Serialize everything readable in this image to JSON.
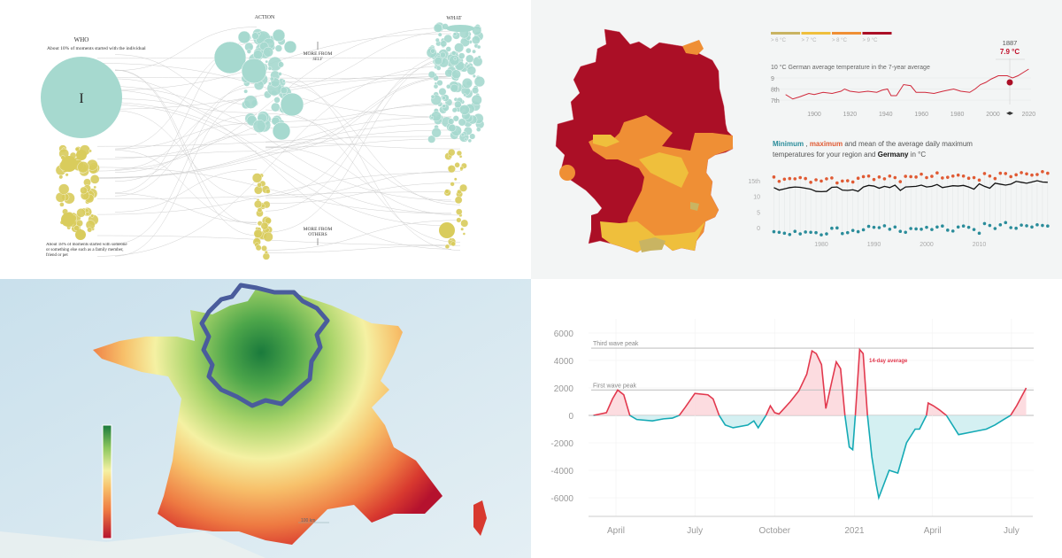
{
  "panels": {
    "bubble_flow": {
      "who_label": "WHO",
      "who_note": "About 10% of moments started with the individual",
      "who_big_node": "I",
      "action_label": "ACTION",
      "what_label": "WHAT",
      "more_from_self": "MORE FROM",
      "more_from_self_sub": "SELF",
      "more_from_others": "MORE FROM",
      "more_from_others_sub": "OTHERS",
      "others_note": "About 18% of moments started with someone or something else such as a family member, friend or pet",
      "colors": {
        "self": "#a6d9cf",
        "others": "#d9cc5c",
        "links": "#d0d0d0"
      }
    },
    "germany_map": {
      "legend": [
        {
          "label": "> 6 °C",
          "color": "#c9b462"
        },
        {
          "label": "> 7 °C",
          "color": "#efbf3c"
        },
        {
          "label": "> 8 °C",
          "color": "#ef8f35"
        },
        {
          "label": "> 9 °C",
          "color": "#ab0f26"
        }
      ]
    },
    "france_map": {
      "scale_label": "100 km",
      "colors": {
        "high": "#1a7a3c",
        "mid": "#f7f0a0",
        "low": "#b5122e",
        "boundary": "#4a5c9c"
      }
    }
  },
  "chart_data": [
    {
      "type": "line",
      "title": "10 °C German average temperature in the 7-year average",
      "hover": {
        "year": "1887",
        "value": "7.9 °C"
      },
      "x_ticks": [
        "1900",
        "1920",
        "1940",
        "1960",
        "1980",
        "2000",
        "2020"
      ],
      "y_ticks": [
        "9",
        "8th",
        "7th"
      ],
      "ylim": [
        7,
        10
      ],
      "color": "#d0283a",
      "points": [
        [
          1884,
          7.5
        ],
        [
          1888,
          7.1
        ],
        [
          1892,
          7.3
        ],
        [
          1897,
          7.6
        ],
        [
          1900,
          7.5
        ],
        [
          1905,
          7.7
        ],
        [
          1910,
          7.6
        ],
        [
          1915,
          7.8
        ],
        [
          1917,
          8.0
        ],
        [
          1920,
          7.8
        ],
        [
          1925,
          7.7
        ],
        [
          1930,
          7.8
        ],
        [
          1935,
          7.7
        ],
        [
          1938,
          7.9
        ],
        [
          1941,
          8.0
        ],
        [
          1943,
          7.4
        ],
        [
          1946,
          7.4
        ],
        [
          1950,
          8.4
        ],
        [
          1954,
          8.3
        ],
        [
          1957,
          7.7
        ],
        [
          1962,
          7.7
        ],
        [
          1967,
          7.6
        ],
        [
          1972,
          7.8
        ],
        [
          1978,
          8.0
        ],
        [
          1982,
          7.8
        ],
        [
          1987,
          7.7
        ],
        [
          1990,
          8.0
        ],
        [
          1993,
          8.4
        ],
        [
          1996,
          8.6
        ],
        [
          1999,
          8.9
        ],
        [
          2003,
          9.2
        ],
        [
          2008,
          9.2
        ],
        [
          2011,
          9.0
        ],
        [
          2014,
          9.2
        ],
        [
          2017,
          9.5
        ],
        [
          2020,
          9.8
        ]
      ]
    },
    {
      "type": "scatter",
      "title_parts": {
        "min": "Minimum",
        "comma": ",",
        "max": "maximum",
        "rest1": "and mean of the average daily maximum",
        "rest2": "temperatures for your region and",
        "germany": "Germany",
        "unit": "in °C"
      },
      "x_ticks": [
        "1980",
        "1990",
        "2000",
        "2010"
      ],
      "y_ticks": [
        "15th",
        "10",
        "5",
        "0"
      ],
      "ylim": [
        -3,
        19
      ],
      "start_year": 1971,
      "series": [
        {
          "key": "max",
          "color": "#e05a33",
          "values": [
            16.2,
            14.8,
            15.5,
            15.7,
            15.6,
            16.0,
            15.7,
            14.5,
            15.3,
            14.9,
            15.6,
            15.9,
            14.3,
            14.9,
            15.0,
            14.6,
            15.8,
            16.3,
            16.5,
            15.4,
            16.2,
            15.6,
            16.5,
            16.0,
            14.7,
            16.4,
            16.3,
            16.2,
            17.1,
            16.0,
            16.4,
            17.5,
            15.9,
            16.1,
            16.5,
            16.8,
            16.5,
            15.8,
            16.0,
            15.2,
            17.3,
            16.5,
            15.7,
            17.4,
            17.3,
            16.3,
            16.9,
            17.6,
            17.2,
            16.8,
            17.0,
            17.9,
            17.4
          ]
        },
        {
          "key": "mean",
          "color": "#111111",
          "values": [
            12.8,
            12.0,
            12.4,
            12.8,
            13.0,
            12.9,
            12.6,
            12.3,
            11.6,
            11.5,
            11.6,
            12.9,
            13.0,
            12.0,
            11.9,
            12.1,
            11.6,
            13.0,
            13.5,
            13.3,
            12.6,
            13.2,
            12.8,
            13.6,
            11.9,
            13.0,
            13.1,
            13.2,
            13.6,
            13.0,
            13.2,
            13.8,
            12.8,
            13.1,
            13.4,
            13.3,
            13.5,
            13.0,
            12.3,
            14.0,
            13.2,
            12.6,
            14.2,
            13.9,
            13.6,
            13.9,
            14.8,
            14.5,
            14.2,
            14.6,
            15.0,
            14.6,
            14.5
          ]
        },
        {
          "key": "min",
          "color": "#2a8c9a",
          "values": [
            -1.3,
            -1.5,
            -1.8,
            -2.2,
            -1.2,
            -2.0,
            -1.4,
            -1.5,
            -1.6,
            -2.3,
            -2.0,
            -0.2,
            -0.1,
            -1.9,
            -1.6,
            -0.9,
            -1.3,
            -0.7,
            0.4,
            0.1,
            0.0,
            0.6,
            -0.5,
            0.2,
            -1.2,
            -1.5,
            -0.3,
            -0.4,
            -0.5,
            0.1,
            -0.6,
            0.2,
            0.5,
            -0.8,
            -1.1,
            0.2,
            0.5,
            0.1,
            -0.6,
            -1.8,
            1.3,
            0.7,
            -0.3,
            0.9,
            1.6,
            0.0,
            -0.2,
            0.8,
            0.6,
            0.2,
            0.9,
            0.7,
            0.5
          ]
        }
      ]
    },
    {
      "type": "area",
      "series_label": "14-day average",
      "annotations": [
        {
          "label": "Third wave peak",
          "value": 4900
        },
        {
          "label": "First wave peak",
          "value": 1850
        }
      ],
      "y_ticks": [
        6000,
        4000,
        2000,
        0,
        -2000,
        -4000,
        -6000
      ],
      "x_ticks": [
        {
          "label": "April",
          "date": "2020-04-01"
        },
        {
          "label": "July",
          "date": "2020-07-01"
        },
        {
          "label": "October",
          "date": "2020-10-01"
        },
        {
          "label": "2021",
          "date": "2021-01-01"
        },
        {
          "label": "April",
          "date": "2021-04-01"
        },
        {
          "label": "July",
          "date": "2021-07-01"
        }
      ],
      "ylim": [
        -7000,
        7000
      ],
      "colors": {
        "positive": "#e2394e",
        "negative": "#15aab5",
        "positive_fill": "#fbd3d8",
        "negative_fill": "#c9ecef"
      },
      "points": [
        [
          "2020-03-06",
          0
        ],
        [
          "2020-03-21",
          200
        ],
        [
          "2020-03-28",
          1200
        ],
        [
          "2020-04-03",
          1850
        ],
        [
          "2020-04-10",
          1500
        ],
        [
          "2020-04-17",
          0
        ],
        [
          "2020-04-25",
          -300
        ],
        [
          "2020-05-13",
          -400
        ],
        [
          "2020-05-26",
          -250
        ],
        [
          "2020-06-05",
          -200
        ],
        [
          "2020-06-13",
          0
        ],
        [
          "2020-06-20",
          600
        ],
        [
          "2020-07-01",
          1600
        ],
        [
          "2020-07-16",
          1500
        ],
        [
          "2020-07-22",
          1200
        ],
        [
          "2020-07-29",
          0
        ],
        [
          "2020-08-05",
          -700
        ],
        [
          "2020-08-14",
          -900
        ],
        [
          "2020-08-31",
          -700
        ],
        [
          "2020-09-07",
          -400
        ],
        [
          "2020-09-12",
          -900
        ],
        [
          "2020-09-21",
          0
        ],
        [
          "2020-09-26",
          700
        ],
        [
          "2020-10-01",
          200
        ],
        [
          "2020-10-06",
          100
        ],
        [
          "2020-10-19",
          1000
        ],
        [
          "2020-10-29",
          1800
        ],
        [
          "2020-11-07",
          3000
        ],
        [
          "2020-11-13",
          4700
        ],
        [
          "2020-11-18",
          4500
        ],
        [
          "2020-11-24",
          3700
        ],
        [
          "2020-11-29",
          500
        ],
        [
          "2020-12-06",
          2500
        ],
        [
          "2020-12-11",
          3900
        ],
        [
          "2020-12-16",
          3400
        ],
        [
          "2020-12-21",
          0
        ],
        [
          "2020-12-26",
          -2300
        ],
        [
          "2020-12-30",
          -2500
        ],
        [
          "2021-01-02",
          0
        ],
        [
          "2021-01-07",
          4800
        ],
        [
          "2021-01-11",
          4500
        ],
        [
          "2021-01-16",
          0
        ],
        [
          "2021-01-21",
          -3000
        ],
        [
          "2021-01-26",
          -5000
        ],
        [
          "2021-01-29",
          -6000
        ],
        [
          "2021-02-10",
          -4000
        ],
        [
          "2021-02-20",
          -4200
        ],
        [
          "2021-03-02",
          -2000
        ],
        [
          "2021-03-12",
          -1000
        ],
        [
          "2021-03-17",
          -1000
        ],
        [
          "2021-03-25",
          0
        ],
        [
          "2021-03-27",
          900
        ],
        [
          "2021-04-02",
          700
        ],
        [
          "2021-04-09",
          400
        ],
        [
          "2021-04-17",
          0
        ],
        [
          "2021-05-01",
          -1400
        ],
        [
          "2021-05-17",
          -1200
        ],
        [
          "2021-06-02",
          -1000
        ],
        [
          "2021-06-12",
          -700
        ],
        [
          "2021-06-22",
          -300
        ],
        [
          "2021-06-30",
          0
        ],
        [
          "2021-07-07",
          700
        ],
        [
          "2021-07-18",
          2000
        ]
      ]
    }
  ]
}
